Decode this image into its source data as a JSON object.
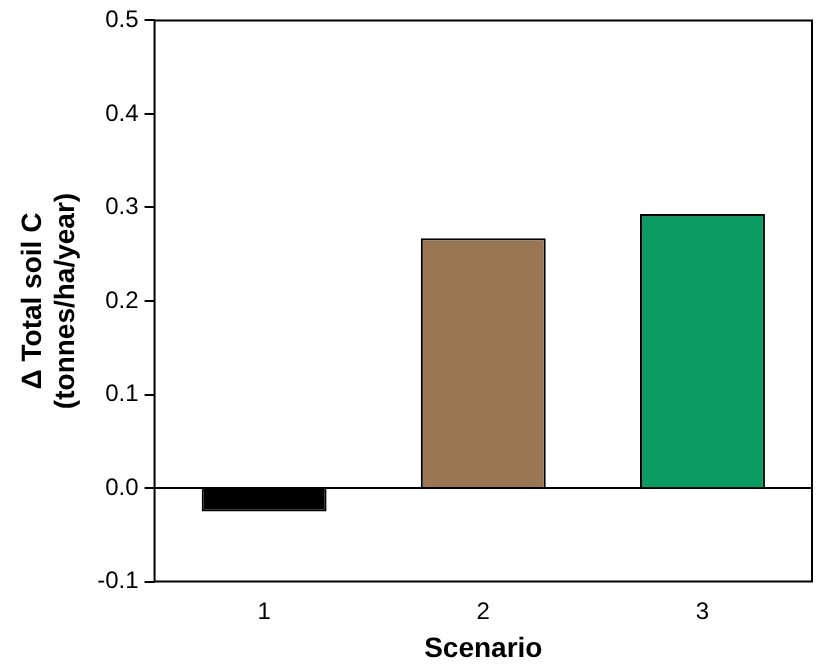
{
  "chart_data": {
    "type": "bar",
    "xlabel": "Scenario",
    "ylabel": "Δ Total soil C\n(tonnes/ha/year)",
    "categories": [
      "1",
      "2",
      "3"
    ],
    "values": [
      -0.025,
      0.267,
      0.293
    ],
    "colors": [
      "#000000",
      "#9b7653",
      "#0a9b62"
    ],
    "ylim": [
      -0.1,
      0.5
    ],
    "yticks": [
      -0.1,
      {
        "value": 0,
        "label": "0.0"
      },
      0.1,
      0.2,
      0.3,
      0.4,
      0.5
    ],
    "ref_lines": [
      {
        "axis": "y",
        "value": 0,
        "color": "#000000"
      }
    ],
    "grid": false,
    "legend": false
  }
}
